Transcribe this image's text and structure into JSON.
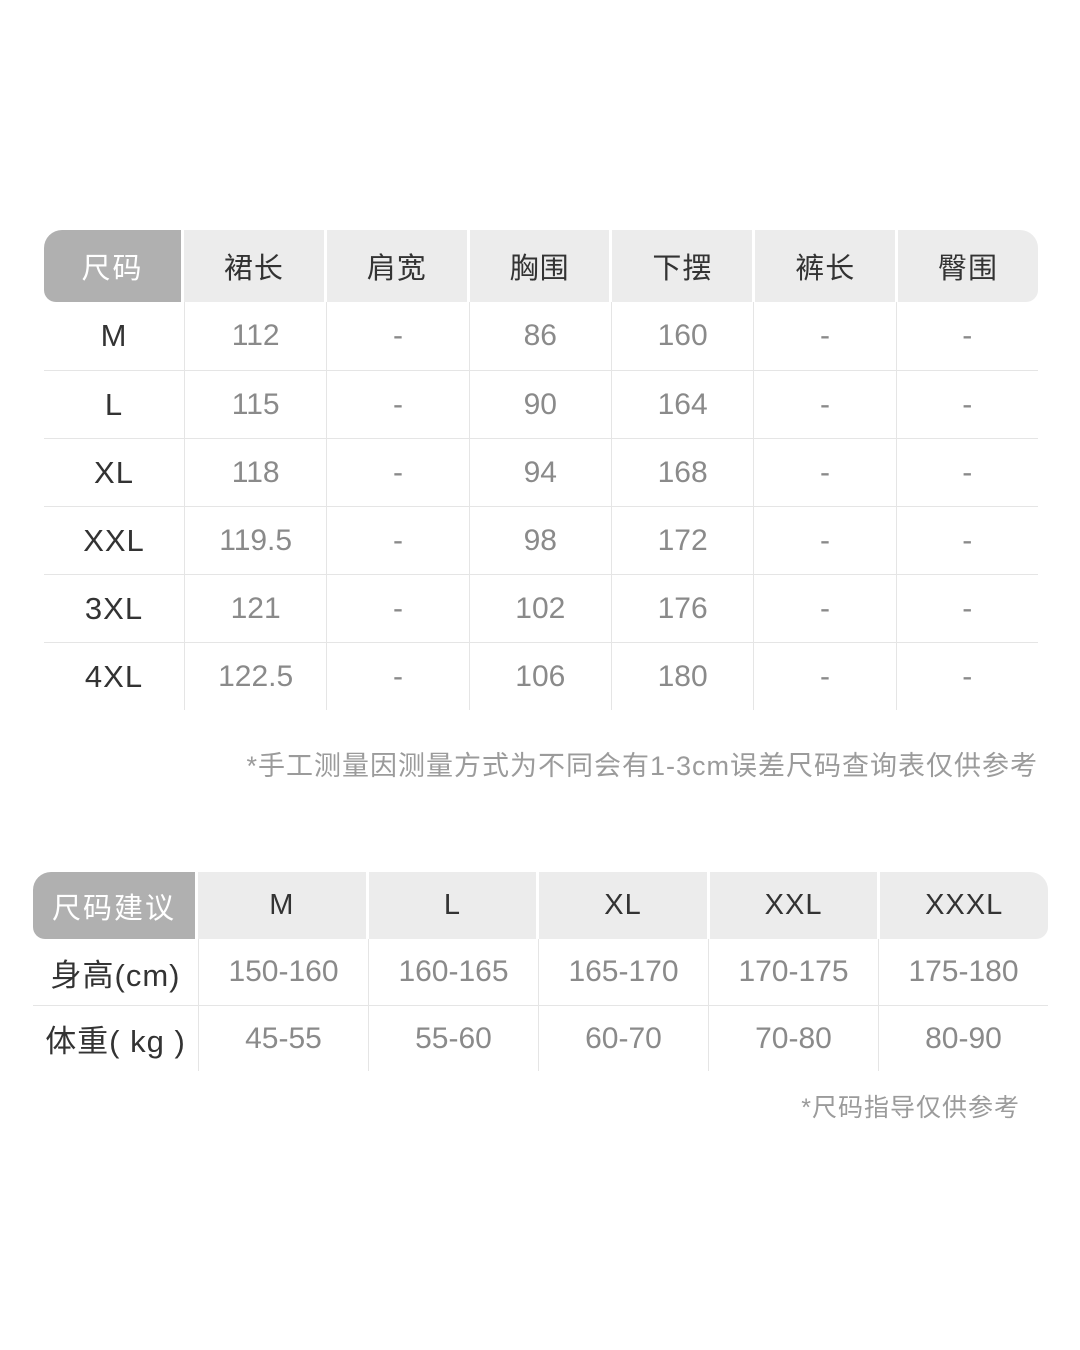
{
  "measurement_table": {
    "corner_header": "尺码",
    "columns": [
      "裙长",
      "肩宽",
      "胸围",
      "下摆",
      "裤长",
      "臀围"
    ],
    "rows": [
      {
        "size": "M",
        "values": [
          "112",
          "-",
          "86",
          "160",
          "-",
          "-"
        ]
      },
      {
        "size": "L",
        "values": [
          "115",
          "-",
          "90",
          "164",
          "-",
          "-"
        ]
      },
      {
        "size": "XL",
        "values": [
          "118",
          "-",
          "94",
          "168",
          "-",
          "-"
        ]
      },
      {
        "size": "XXL",
        "values": [
          "119.5",
          "-",
          "98",
          "172",
          "-",
          "-"
        ]
      },
      {
        "size": "3XL",
        "values": [
          "121",
          "-",
          "102",
          "176",
          "-",
          "-"
        ]
      },
      {
        "size": "4XL",
        "values": [
          "122.5",
          "-",
          "106",
          "180",
          "-",
          "-"
        ]
      }
    ],
    "footnote": "*手工测量因测量方式为不同会有1-3cm误差尺码查询表仅供参考"
  },
  "recommendation_table": {
    "corner_header": "尺码建议",
    "columns": [
      "M",
      "L",
      "XL",
      "XXL",
      "XXXL"
    ],
    "rows": [
      {
        "label": "身高(cm)",
        "values": [
          "150-160",
          "160-165",
          "165-170",
          "170-175",
          "175-180"
        ]
      },
      {
        "label": "体重( kg )",
        "values": [
          "45-55",
          "55-60",
          "60-70",
          "70-80",
          "80-90"
        ]
      }
    ],
    "footnote": "*尺码指导仅供参考"
  },
  "colors": {
    "page_bg": "#ffffff",
    "corner_bg": "#b0b0b0",
    "corner_text": "#ffffff",
    "header_bg": "#ececec",
    "header_text": "#333333",
    "label_text": "#333333",
    "value_text": "#8a8a8a",
    "divider": "#e5e5e5",
    "footnote_text": "#9b9b9b"
  }
}
